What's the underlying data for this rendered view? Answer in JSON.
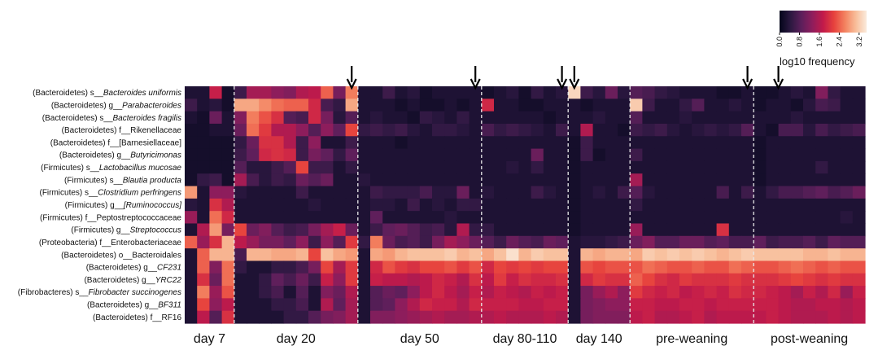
{
  "chart_data": {
    "type": "heatmap",
    "title": "",
    "xlabel": "",
    "ylabel": "",
    "rows": [
      {
        "phylum": "(Bacteroidetes)",
        "prefix": "s__",
        "name": "Bacteroides uniformis",
        "italic": true
      },
      {
        "phylum": "(Bacteroidetes)",
        "prefix": "g__",
        "name": "Parabacteroides",
        "italic": true
      },
      {
        "phylum": "(Bacteroidetes)",
        "prefix": "s__",
        "name": "Bacteroides fragilis",
        "italic": true
      },
      {
        "phylum": "(Bacteroidetes)",
        "prefix": "f__",
        "name": "Rikenellaceae",
        "italic": false
      },
      {
        "phylum": "(Bacteroidetes)",
        "prefix": "f__",
        "name": "[Barnesiellaceae]",
        "italic": false
      },
      {
        "phylum": "(Bacteroidetes)",
        "prefix": "g__",
        "name": "Butyricimonas",
        "italic": true
      },
      {
        "phylum": "(Firmicutes)",
        "prefix": "s__",
        "name": "Lactobacillus mucosae",
        "italic": true
      },
      {
        "phylum": "(Firmicutes)",
        "prefix": "s__",
        "name": "Blautia producta",
        "italic": true
      },
      {
        "phylum": "(Firmicutes)",
        "prefix": "s__",
        "name": "Clostridium perfringens",
        "italic": true
      },
      {
        "phylum": "(Firmicutes)",
        "prefix": "g__",
        "name": "[Ruminococcus]",
        "italic": true
      },
      {
        "phylum": "(Firmicutes)",
        "prefix": "f__",
        "name": "Peptostreptococcaceae",
        "italic": false
      },
      {
        "phylum": "(Firmicutes)",
        "prefix": "g__",
        "name": "Streptococcus",
        "italic": true
      },
      {
        "phylum": "(Proteobacteria)",
        "prefix": "f__",
        "name": "Enterobacteriaceae",
        "italic": false
      },
      {
        "phylum": "(Bacteroidetes)",
        "prefix": "o__",
        "name": "Bacteroidales",
        "italic": false
      },
      {
        "phylum": "(Bacteroidetes)",
        "prefix": "g__",
        "name": "CF231",
        "italic": true
      },
      {
        "phylum": "(Bacteroidetes)",
        "prefix": "g__",
        "name": "YRC22",
        "italic": true
      },
      {
        "phylum": "(Fibrobacteres)",
        "prefix": "s__",
        "name": "Fibrobacter succinogenes",
        "italic": true
      },
      {
        "phylum": "(Bacteroidetes)",
        "prefix": "g__",
        "name": "BF311",
        "italic": true
      },
      {
        "phylum": "(Bacteroidetes)",
        "prefix": "f__",
        "name": "RF16",
        "italic": false
      }
    ],
    "groups": [
      {
        "label": "day 7",
        "columns": 4,
        "arrow": false
      },
      {
        "label": "day 20",
        "columns": 10,
        "arrow": true
      },
      {
        "label": "day 50",
        "columns": 10,
        "arrow": true
      },
      {
        "label": "day 80-110",
        "columns": 7,
        "arrow": true
      },
      {
        "label": "day 140",
        "columns": 5,
        "arrow": true
      },
      {
        "label": "pre-weaning",
        "columns": 10,
        "arrow": true
      },
      {
        "label": "post-weaning",
        "columns": 9,
        "arrow": true
      }
    ],
    "values": [
      [
        0.3,
        0.3,
        1.8,
        0.2,
        0.6,
        1.5,
        1.5,
        1.3,
        1.2,
        1.6,
        1.7,
        2.4,
        1.1,
        2.6,
        0.3,
        0.3,
        0.6,
        0.3,
        0.4,
        0.2,
        0.3,
        0.3,
        0.3,
        0.3,
        0.2,
        0.3,
        0.4,
        0.2,
        0.5,
        0.3,
        0.4,
        3.3,
        0.6,
        0.4,
        1.0,
        0.4,
        0.8,
        0.7,
        0.5,
        0.4,
        0.3,
        0.3,
        0.3,
        0.2,
        0.2,
        0.3,
        0.2,
        0.2,
        0.3,
        0.4,
        0.3,
        1.2,
        0.5,
        0.3,
        0.3
      ],
      [
        0.6,
        0.3,
        0.4,
        0.2,
        2.9,
        2.9,
        2.7,
        2.5,
        2.4,
        2.4,
        1.9,
        0.7,
        0.5,
        2.9,
        0.3,
        0.3,
        0.3,
        0.2,
        0.3,
        0.2,
        0.2,
        0.3,
        0.2,
        0.3,
        1.9,
        0.3,
        0.3,
        0.2,
        0.2,
        0.3,
        0.3,
        0.3,
        0.2,
        0.3,
        0.3,
        0.3,
        3.2,
        0.6,
        0.3,
        0.3,
        0.5,
        0.8,
        0.3,
        0.3,
        0.4,
        0.3,
        0.2,
        0.3,
        0.3,
        0.2,
        0.4,
        0.7,
        0.6,
        0.3,
        0.3
      ],
      [
        0.3,
        0.2,
        1.0,
        0.3,
        1.2,
        2.6,
        2.3,
        2.0,
        0.8,
        0.7,
        1.9,
        1.1,
        0.4,
        0.8,
        0.3,
        0.4,
        0.3,
        0.3,
        0.2,
        0.5,
        0.4,
        0.3,
        0.5,
        0.3,
        0.3,
        0.3,
        0.3,
        0.3,
        0.3,
        0.2,
        0.3,
        0.3,
        0.3,
        0.4,
        0.3,
        0.3,
        0.8,
        0.3,
        0.3,
        0.3,
        0.4,
        0.3,
        0.3,
        0.3,
        0.3,
        0.3,
        0.3,
        0.3,
        0.3,
        0.4,
        0.3,
        0.3,
        0.3,
        0.3,
        0.3
      ],
      [
        0.2,
        0.2,
        0.3,
        0.3,
        1.0,
        2.5,
        2.1,
        1.6,
        1.6,
        1.3,
        0.8,
        1.3,
        0.9,
        2.2,
        0.5,
        0.6,
        0.5,
        0.6,
        0.4,
        0.3,
        0.5,
        0.5,
        0.4,
        0.3,
        0.7,
        0.5,
        0.6,
        0.5,
        0.4,
        0.3,
        0.6,
        0.3,
        1.6,
        0.3,
        0.3,
        0.2,
        0.6,
        0.5,
        0.6,
        0.4,
        0.3,
        0.4,
        0.5,
        0.4,
        0.5,
        0.8,
        0.3,
        0.2,
        0.7,
        0.7,
        0.4,
        0.7,
        0.5,
        0.6,
        0.7
      ],
      [
        0.2,
        0.2,
        0.2,
        0.2,
        0.5,
        1.0,
        2.0,
        2.0,
        1.6,
        0.6,
        1.3,
        0.3,
        0.3,
        0.6,
        0.3,
        0.3,
        0.3,
        0.2,
        0.3,
        0.3,
        0.3,
        0.3,
        0.3,
        0.3,
        0.3,
        0.3,
        0.3,
        0.3,
        0.3,
        0.3,
        0.3,
        0.2,
        0.6,
        0.3,
        0.3,
        0.3,
        0.3,
        0.3,
        0.3,
        0.3,
        0.3,
        0.3,
        0.3,
        0.3,
        0.3,
        0.3,
        0.2,
        0.3,
        0.3,
        0.3,
        0.3,
        0.3,
        0.3,
        0.3,
        0.3
      ],
      [
        0.2,
        0.2,
        0.2,
        0.2,
        0.6,
        0.9,
        1.9,
        2.0,
        1.9,
        0.6,
        1.1,
        0.9,
        0.5,
        0.9,
        0.3,
        0.3,
        0.3,
        0.3,
        0.3,
        0.3,
        0.3,
        0.3,
        0.3,
        0.3,
        0.3,
        0.3,
        0.3,
        0.3,
        1.0,
        0.3,
        0.3,
        0.2,
        0.6,
        0.2,
        0.3,
        0.3,
        0.6,
        0.3,
        0.3,
        0.3,
        0.3,
        0.3,
        0.3,
        0.3,
        0.3,
        0.3,
        0.2,
        0.3,
        0.3,
        0.3,
        0.3,
        0.3,
        0.3,
        0.3,
        0.3
      ],
      [
        0.2,
        0.2,
        0.2,
        0.2,
        0.8,
        0.4,
        0.4,
        0.6,
        0.8,
        2.2,
        0.6,
        0.6,
        0.3,
        0.5,
        0.3,
        0.3,
        0.3,
        0.3,
        0.3,
        0.3,
        0.3,
        0.3,
        0.3,
        0.3,
        0.3,
        0.3,
        0.4,
        0.3,
        0.5,
        0.3,
        0.3,
        0.2,
        0.3,
        0.3,
        0.3,
        0.3,
        0.3,
        0.3,
        0.3,
        0.3,
        0.3,
        0.3,
        0.3,
        0.3,
        0.3,
        0.3,
        0.2,
        0.3,
        0.3,
        0.3,
        0.3,
        0.5,
        0.3,
        0.3,
        0.3
      ],
      [
        0.2,
        0.5,
        0.6,
        0.2,
        1.5,
        0.7,
        0.4,
        0.6,
        0.5,
        1.0,
        0.8,
        1.0,
        0.3,
        0.3,
        0.4,
        0.3,
        0.3,
        0.3,
        0.3,
        0.3,
        0.3,
        0.3,
        0.3,
        0.3,
        0.3,
        0.3,
        0.3,
        0.3,
        0.3,
        0.3,
        0.3,
        0.2,
        0.3,
        0.3,
        0.3,
        0.3,
        1.5,
        0.3,
        0.3,
        0.3,
        0.3,
        0.3,
        0.3,
        0.3,
        0.3,
        0.3,
        0.2,
        0.3,
        0.3,
        0.3,
        0.3,
        0.3,
        0.3,
        0.3,
        0.3
      ],
      [
        2.8,
        0.3,
        1.3,
        1.3,
        0.4,
        0.3,
        0.3,
        0.3,
        0.3,
        0.6,
        0.3,
        0.3,
        0.3,
        0.3,
        0.3,
        0.6,
        0.5,
        0.5,
        0.5,
        0.7,
        0.4,
        0.4,
        1.0,
        0.3,
        0.4,
        0.3,
        0.3,
        0.3,
        0.6,
        0.4,
        0.3,
        0.2,
        0.3,
        0.4,
        0.3,
        0.6,
        0.8,
        0.4,
        0.3,
        0.3,
        0.3,
        0.3,
        0.3,
        0.7,
        0.3,
        0.6,
        0.3,
        0.5,
        0.7,
        0.7,
        0.8,
        0.9,
        0.7,
        0.8,
        1.0
      ],
      [
        0.4,
        0.3,
        2.0,
        1.6,
        0.3,
        0.3,
        0.3,
        0.3,
        0.3,
        0.3,
        0.4,
        0.3,
        0.3,
        0.3,
        0.3,
        0.4,
        0.4,
        0.3,
        0.6,
        0.3,
        0.4,
        0.3,
        0.5,
        0.5,
        0.3,
        0.3,
        0.3,
        0.3,
        0.3,
        0.3,
        0.3,
        0.2,
        0.3,
        0.3,
        0.3,
        0.3,
        0.5,
        0.3,
        0.3,
        0.3,
        0.3,
        0.3,
        0.3,
        0.3,
        0.3,
        0.3,
        0.3,
        0.3,
        0.3,
        0.3,
        0.3,
        0.3,
        0.3,
        0.3,
        0.3
      ],
      [
        1.4,
        0.3,
        2.5,
        1.9,
        0.3,
        0.3,
        0.3,
        0.3,
        0.3,
        0.3,
        0.3,
        0.3,
        0.3,
        0.3,
        0.3,
        0.9,
        0.3,
        0.3,
        0.3,
        0.3,
        0.3,
        0.4,
        0.3,
        0.3,
        0.3,
        0.3,
        0.3,
        0.3,
        0.3,
        0.3,
        0.3,
        0.2,
        0.3,
        0.3,
        0.3,
        0.3,
        0.3,
        0.3,
        0.3,
        0.3,
        0.3,
        0.3,
        0.3,
        0.3,
        0.3,
        0.3,
        0.3,
        0.3,
        0.3,
        0.3,
        0.3,
        0.3,
        0.3,
        0.4,
        0.3
      ],
      [
        0.3,
        1.6,
        2.8,
        1.1,
        2.2,
        1.0,
        1.2,
        0.8,
        0.6,
        0.7,
        1.1,
        1.5,
        1.8,
        1.0,
        0.3,
        0.6,
        0.9,
        1.0,
        0.8,
        0.6,
        0.7,
        0.4,
        1.6,
        0.5,
        0.5,
        0.3,
        0.3,
        0.3,
        0.3,
        0.3,
        0.3,
        0.2,
        0.3,
        0.3,
        0.3,
        0.3,
        1.4,
        0.3,
        0.3,
        0.3,
        0.3,
        0.3,
        0.3,
        2.0,
        0.3,
        0.3,
        0.3,
        0.3,
        0.3,
        0.3,
        0.3,
        0.3,
        0.3,
        0.3,
        0.3
      ],
      [
        2.4,
        1.4,
        2.0,
        3.0,
        1.7,
        1.4,
        1.1,
        1.1,
        0.9,
        1.3,
        0.6,
        1.3,
        0.8,
        2.1,
        0.5,
        2.6,
        1.0,
        0.7,
        0.8,
        0.6,
        1.1,
        1.5,
        1.3,
        1.0,
        0.8,
        0.6,
        1.0,
        0.8,
        0.7,
        1.0,
        0.9,
        0.3,
        0.4,
        0.4,
        0.5,
        0.6,
        1.0,
        1.2,
        0.8,
        0.8,
        1.0,
        1.0,
        0.8,
        0.9,
        0.7,
        0.7,
        0.9,
        0.6,
        0.7,
        0.7,
        0.8,
        0.6,
        0.9,
        0.8,
        0.8
      ],
      [
        0.3,
        2.4,
        3.0,
        3.0,
        0.7,
        3.0,
        3.0,
        2.9,
        2.9,
        3.0,
        2.2,
        3.1,
        2.9,
        2.8,
        0.3,
        2.9,
        2.8,
        3.0,
        3.1,
        3.1,
        3.1,
        3.2,
        3.0,
        3.1,
        2.9,
        3.1,
        3.4,
        3.0,
        3.2,
        3.1,
        3.1,
        0.3,
        3.0,
        2.9,
        3.0,
        3.0,
        2.9,
        3.2,
        3.1,
        3.2,
        3.1,
        3.2,
        3.1,
        3.0,
        3.1,
        3.2,
        3.1,
        3.1,
        3.1,
        3.1,
        3.0,
        3.0,
        3.1,
        3.0,
        3.0
      ],
      [
        0.3,
        2.4,
        1.2,
        2.5,
        0.5,
        0.3,
        0.3,
        0.5,
        0.5,
        0.7,
        1.1,
        2.2,
        1.5,
        2.1,
        0.3,
        1.9,
        2.3,
        2.1,
        2.0,
        2.2,
        2.2,
        2.3,
        2.1,
        2.3,
        1.9,
        2.2,
        2.1,
        2.2,
        2.1,
        2.2,
        2.2,
        0.3,
        2.3,
        2.2,
        2.3,
        2.3,
        2.3,
        2.5,
        2.4,
        2.3,
        2.3,
        2.4,
        2.3,
        2.3,
        2.5,
        2.4,
        2.3,
        2.3,
        2.4,
        2.5,
        2.4,
        2.3,
        2.4,
        2.3,
        2.3
      ],
      [
        0.3,
        2.0,
        1.0,
        2.5,
        0.3,
        0.3,
        0.5,
        0.9,
        0.7,
        1.0,
        0.6,
        1.8,
        1.3,
        2.1,
        0.3,
        1.8,
        1.7,
        1.7,
        1.6,
        1.7,
        1.9,
        1.8,
        1.6,
        2.0,
        1.7,
        2.1,
        1.8,
        2.0,
        1.9,
        1.9,
        2.0,
        0.3,
        1.9,
        2.1,
        2.0,
        2.0,
        2.4,
        2.2,
        2.0,
        1.9,
        2.1,
        2.0,
        2.0,
        2.0,
        2.1,
        2.0,
        2.0,
        2.0,
        2.1,
        2.2,
        2.1,
        2.0,
        2.1,
        2.0,
        2.0
      ],
      [
        0.3,
        2.6,
        1.4,
        2.3,
        0.3,
        0.3,
        0.5,
        0.7,
        0.3,
        0.8,
        0.3,
        1.2,
        1.0,
        1.6,
        0.3,
        0.8,
        1.0,
        0.9,
        1.3,
        1.7,
        1.9,
        1.7,
        1.5,
        1.8,
        1.6,
        1.8,
        1.7,
        1.6,
        1.8,
        1.7,
        1.8,
        0.3,
        1.1,
        1.4,
        1.6,
        1.3,
        2.1,
        1.9,
        1.8,
        1.9,
        1.7,
        1.8,
        1.9,
        1.8,
        2.0,
        1.9,
        1.9,
        1.8,
        1.7,
        1.5,
        1.8,
        1.6,
        1.9,
        1.4,
        1.8
      ],
      [
        0.3,
        2.2,
        1.3,
        1.7,
        0.3,
        0.3,
        0.3,
        0.5,
        0.5,
        0.7,
        0.3,
        1.6,
        0.9,
        1.5,
        0.3,
        0.8,
        0.9,
        1.3,
        1.6,
        1.9,
        1.8,
        1.8,
        1.6,
        1.9,
        1.8,
        1.8,
        1.8,
        1.7,
        1.7,
        1.8,
        1.8,
        0.3,
        1.1,
        1.2,
        1.3,
        1.3,
        1.8,
        1.8,
        1.7,
        1.7,
        1.8,
        1.8,
        1.7,
        1.8,
        1.8,
        1.8,
        1.8,
        1.8,
        1.7,
        1.6,
        1.6,
        1.7,
        1.7,
        1.6,
        1.7
      ],
      [
        0.3,
        1.7,
        0.8,
        2.0,
        0.3,
        0.3,
        0.3,
        0.3,
        0.5,
        0.5,
        0.8,
        1.1,
        1.2,
        1.5,
        0.3,
        1.2,
        1.2,
        1.3,
        1.4,
        1.5,
        1.6,
        1.5,
        1.5,
        1.6,
        1.6,
        1.7,
        1.6,
        1.6,
        1.6,
        1.7,
        1.6,
        0.3,
        1.1,
        1.2,
        1.2,
        1.2,
        1.7,
        1.8,
        1.6,
        1.6,
        1.7,
        1.8,
        1.6,
        1.7,
        1.7,
        1.7,
        1.7,
        1.8,
        1.7,
        1.6,
        1.6,
        1.6,
        1.7,
        1.6,
        1.7
      ]
    ],
    "colorbar": {
      "label": "log10 frequency",
      "range": [
        0.0,
        3.5
      ],
      "ticks": [
        "0.0",
        "0.8",
        "1.6",
        "2.4",
        "3.2"
      ],
      "colormap": [
        "#03051a",
        "#2b1840",
        "#5c1f5b",
        "#8e1d5c",
        "#c21a4a",
        "#e7423d",
        "#f3815f",
        "#f8bd99",
        "#faebdd"
      ]
    }
  }
}
